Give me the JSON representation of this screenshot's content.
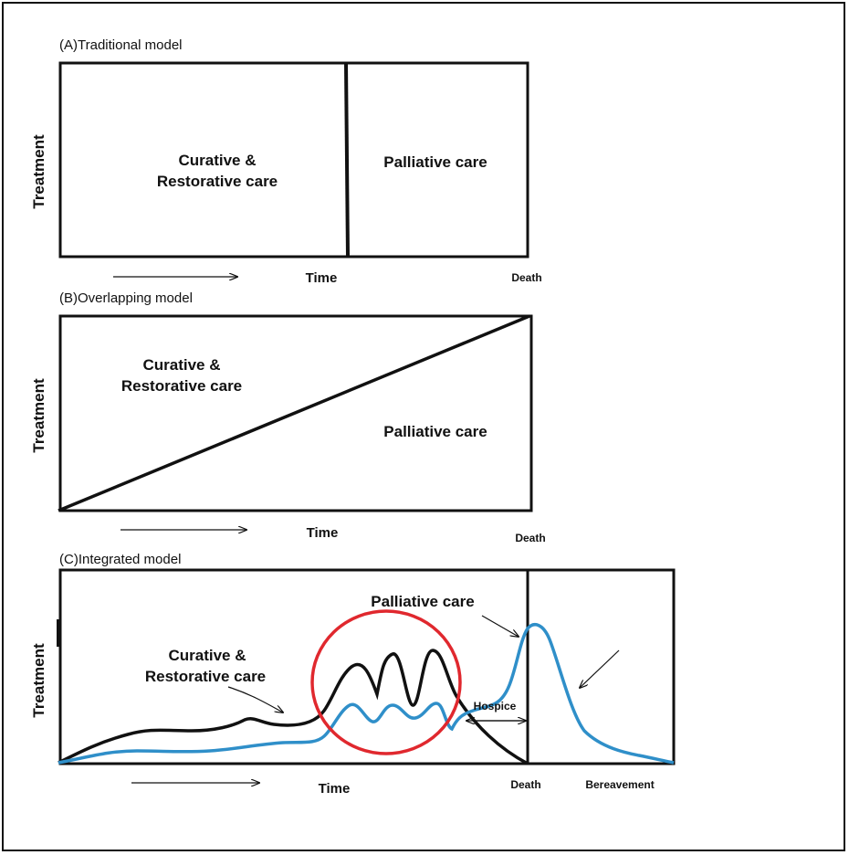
{
  "panels": {
    "a": {
      "title": "(A)Traditional model",
      "ylabel": "Treatment",
      "curative_line1": "Curative &",
      "curative_line2": "Restorative care",
      "palliative": "Palliative care",
      "time": "Time",
      "death": "Death"
    },
    "b": {
      "title": "(B)Overlapping model",
      "ylabel": "Treatment",
      "curative_line1": "Curative &",
      "curative_line2": "Restorative care",
      "palliative": "Palliative care",
      "time": "Time",
      "death": "Death"
    },
    "c": {
      "title": "(C)Integrated model",
      "ylabel": "Treatment",
      "palliative": "Palliative care",
      "curative_line1": "Curative &",
      "curative_line2": "Restorative care",
      "hospice": "Hospice",
      "time": "Time",
      "death": "Death",
      "bereavement": "Bereavement"
    }
  },
  "colors": {
    "curative_curve": "#111111",
    "palliative_curve": "#2f8fc9",
    "highlight_circle": "#e0282e"
  }
}
